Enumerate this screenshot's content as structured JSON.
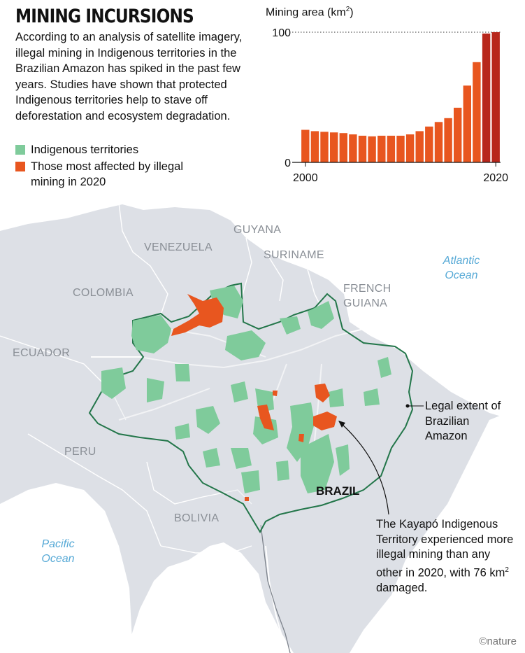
{
  "header": {
    "title": "MINING INCURSIONS",
    "intro": "According to an analysis of satellite imagery, illegal mining in Indigenous territories in the Brazilian Amazon has spiked in the past few years. Studies have shown that protected Indigenous territories help to stave off deforestation and ecosystem degradation."
  },
  "legend": [
    {
      "label": "Indigenous territories",
      "color": "#7fcb9b"
    },
    {
      "label": "Those most affected by illegal mining in 2020",
      "color": "#e8561f"
    }
  ],
  "chart_data": {
    "type": "bar",
    "title_text": "Mining area (km",
    "title_sup": "2",
    "title_end": ")",
    "x": [
      2000,
      2001,
      2002,
      2003,
      2004,
      2005,
      2006,
      2007,
      2008,
      2009,
      2010,
      2011,
      2012,
      2013,
      2014,
      2015,
      2016,
      2017,
      2018,
      2019,
      2020
    ],
    "values": [
      25,
      24,
      23.5,
      23,
      22.5,
      21.5,
      20.5,
      20,
      20.5,
      20.5,
      20.5,
      21.5,
      24,
      27.5,
      31,
      34,
      42,
      59,
      77,
      99,
      100
    ],
    "ylim": [
      0,
      100
    ],
    "yticks": [
      "0",
      "100"
    ],
    "xticks": [
      "2000",
      "2020"
    ],
    "bar_color": "#e8561f",
    "highlight_color": "#b8271c",
    "highlight_years": [
      2019,
      2020
    ]
  },
  "map": {
    "countries": [
      "GUYANA",
      "VENEZUELA",
      "SURINAME",
      "FRENCH GUIANA",
      "COLOMBIA",
      "ECUADOR",
      "PERU",
      "BOLIVIA"
    ],
    "brazil": "BRAZIL",
    "oceans": [
      "Atlantic Ocean",
      "Pacific Ocean"
    ],
    "boundary_color": "#23764a",
    "land_color": "#dde0e6",
    "water_color": "#b7bdc6"
  },
  "annotations": {
    "legal_extent": "Legal extent of Brazilian Amazon",
    "kayapo_line1": "The Kayapó Indigenous Territory experienced more illegal mining than any other in 2020, with 76 km",
    "kayapo_sup": "2",
    "kayapo_end": " damaged."
  },
  "credit": "©nature"
}
